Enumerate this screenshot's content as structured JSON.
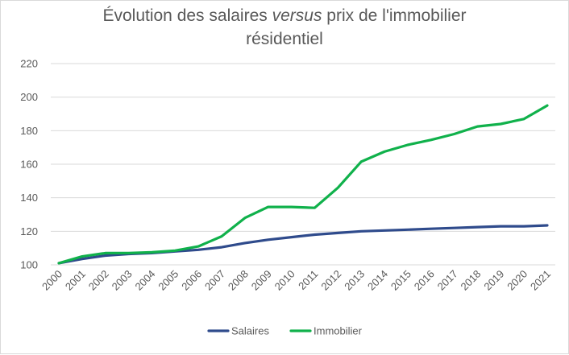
{
  "chart_data": {
    "type": "line",
    "title_part1": "Évolution des salaires ",
    "title_em": "versus",
    "title_part2": " prix de l'immobilier",
    "title_line2": "résidentiel",
    "xlabel": "",
    "ylabel": "",
    "ylim": [
      100,
      220
    ],
    "yticks": [
      100,
      120,
      140,
      160,
      180,
      200,
      220
    ],
    "grid": true,
    "legend_position": "bottom",
    "x": [
      "2000",
      "2001",
      "2002",
      "2003",
      "2004",
      "2005",
      "2006",
      "2007",
      "2008",
      "2009",
      "2010",
      "2011",
      "2012",
      "2013",
      "2014",
      "2015",
      "2016",
      "2017",
      "2018",
      "2019",
      "2020",
      "2021"
    ],
    "series": [
      {
        "name": "Salaires",
        "color": "#2f4b8c",
        "values": [
          101,
          103.5,
          105.5,
          106.5,
          107,
          108,
          109,
          110.5,
          113,
          115,
          116.5,
          118,
          119,
          120,
          120.5,
          121,
          121.5,
          122,
          122.5,
          123,
          123,
          123.5
        ]
      },
      {
        "name": "Immobilier",
        "color": "#10b14b",
        "values": [
          101,
          105,
          107,
          107,
          107.5,
          108.5,
          111,
          117,
          128,
          134.5,
          134.5,
          134,
          146,
          161.5,
          167.5,
          171.5,
          174.5,
          178,
          182.5,
          184,
          187,
          195
        ]
      }
    ]
  }
}
